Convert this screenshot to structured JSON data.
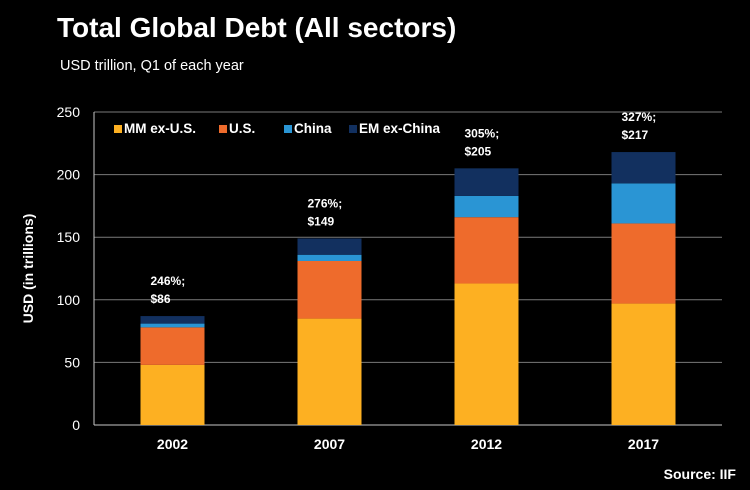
{
  "header": {
    "title": "Total Global Debt (All sectors)",
    "subtitle": "USD trillion, Q1 of each year"
  },
  "footer": {
    "source": "Source:  IIF"
  },
  "colors": {
    "background": "#000000",
    "MM ex-U.S.": "#fdb022",
    "U.S.": "#ee6b2c",
    "China": "#2a95d4",
    "EM ex-China": "#12305f",
    "gridline": "#7a7a7a",
    "axis": "#c8c8c8"
  },
  "chart_data": {
    "type": "bar",
    "stacked": true,
    "title": "Total Global Debt (All sectors)",
    "subtitle": "USD trillion, Q1 of each year",
    "xlabel": "",
    "ylabel": "USD (in trillions)",
    "ylim": [
      0,
      250
    ],
    "yticks": [
      0,
      50,
      100,
      150,
      200,
      250
    ],
    "grid": true,
    "legend_position": "top-left",
    "categories": [
      "2002",
      "2007",
      "2012",
      "2017"
    ],
    "series": [
      {
        "name": "MM ex-U.S.",
        "values": [
          48,
          85,
          113,
          97
        ]
      },
      {
        "name": "U.S.",
        "values": [
          30,
          46,
          53,
          64
        ]
      },
      {
        "name": "China",
        "values": [
          3,
          5,
          17,
          32
        ]
      },
      {
        "name": "EM ex-China",
        "values": [
          6,
          13,
          22,
          25
        ]
      }
    ],
    "annotations": [
      {
        "category": "2002",
        "line1": "246%;",
        "line2": "$86"
      },
      {
        "category": "2007",
        "line1": "276%;",
        "line2": "$149"
      },
      {
        "category": "2012",
        "line1": "305%;",
        "line2": "$205"
      },
      {
        "category": "2017",
        "line1": "327%;",
        "line2": "$217"
      }
    ]
  }
}
